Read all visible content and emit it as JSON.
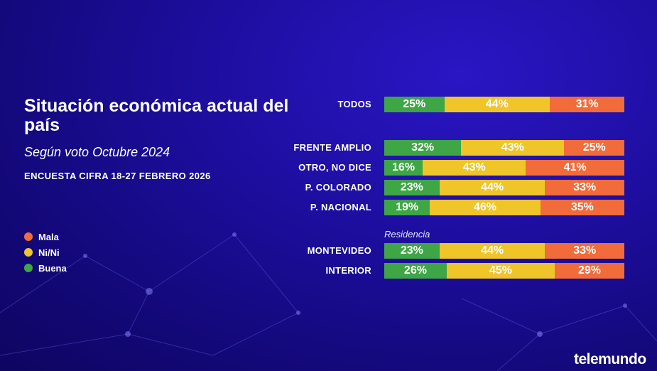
{
  "header": {
    "title": "Situación económica actual del país",
    "subtitle": "Según voto Octubre 2024",
    "source": "ENCUESTA CIFRA 18-27 FEBRERO 2026"
  },
  "legend": [
    {
      "label": "Mala",
      "color": "#f26b3a"
    },
    {
      "label": "Ni/Ni",
      "color": "#f0c52a"
    },
    {
      "label": "Buena",
      "color": "#3fa646"
    }
  ],
  "section_label": "Residencia",
  "brand": "telemundo",
  "colors": {
    "buena": "#3fa646",
    "nini": "#f0c52a",
    "mala": "#f26b3a"
  },
  "chart_data": {
    "type": "bar",
    "stacked": true,
    "orientation": "horizontal",
    "categories": [
      "TODOS",
      "FRENTE AMPLIO",
      "OTRO, NO DICE",
      "P. COLORADO",
      "P. NACIONAL",
      "MONTEVIDEO",
      "INTERIOR"
    ],
    "series": [
      {
        "name": "Buena",
        "values": [
          25,
          32,
          16,
          23,
          19,
          23,
          26
        ]
      },
      {
        "name": "Ni/Ni",
        "values": [
          44,
          43,
          43,
          44,
          46,
          44,
          45
        ]
      },
      {
        "name": "Mala",
        "values": [
          31,
          25,
          41,
          33,
          35,
          33,
          29
        ]
      }
    ],
    "value_labels": [
      [
        "25%",
        "44%",
        "31%"
      ],
      [
        "32%",
        "43%",
        "25%"
      ],
      [
        "16%",
        "43%",
        "41%"
      ],
      [
        "23%",
        "44%",
        "33%"
      ],
      [
        "19%",
        "46%",
        "35%"
      ],
      [
        "23%",
        "44%",
        "33%"
      ],
      [
        "26%",
        "45%",
        "29%"
      ]
    ],
    "xlim": [
      0,
      100
    ],
    "legend_position": "left"
  }
}
